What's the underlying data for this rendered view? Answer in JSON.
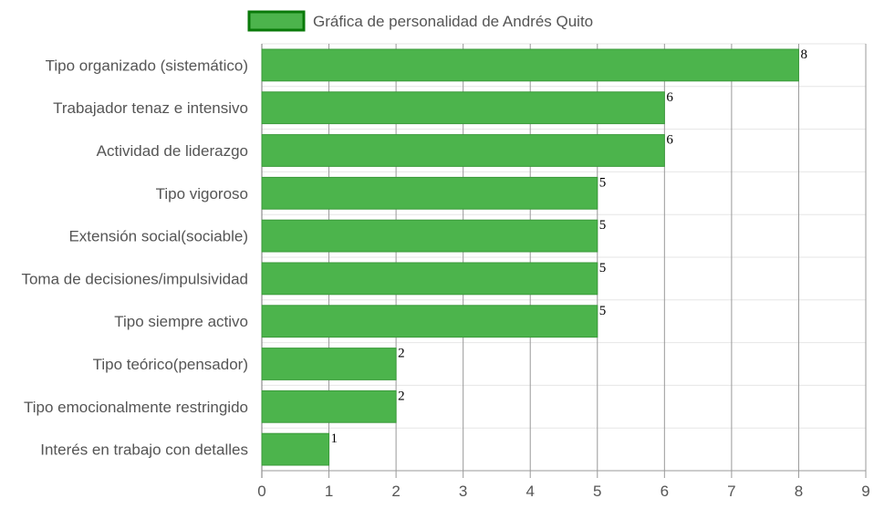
{
  "chart_data": {
    "type": "bar",
    "orientation": "horizontal",
    "categories": [
      "Tipo organizado (sistemático)",
      "Trabajador tenaz e intensivo",
      "Actividad de liderazgo",
      "Tipo vigoroso",
      "Extensión social(sociable)",
      "Toma de decisiones/impulsividad",
      "Tipo siempre activo",
      "Tipo teórico(pensador)",
      "Tipo emocionalmente restringido",
      "Interés en trabajo con detalles"
    ],
    "series": [
      {
        "name": "Gráfica de personalidad de Andrés Quito",
        "values": [
          8,
          6,
          6,
          5,
          5,
          5,
          5,
          2,
          2,
          1
        ],
        "color": "#4cb44c",
        "border_color": "#3a9a3a"
      }
    ],
    "xlim": [
      0,
      9
    ],
    "xticks": [
      0,
      1,
      2,
      3,
      4,
      5,
      6,
      7,
      8,
      9
    ],
    "data_labels": true,
    "legend_position": "top",
    "legend_box_fill": "#4cb44c",
    "legend_box_border": "#0a7a0a",
    "grid": true,
    "grid_color": "#e6e6e6",
    "vertical_grid_color": "#999999"
  }
}
